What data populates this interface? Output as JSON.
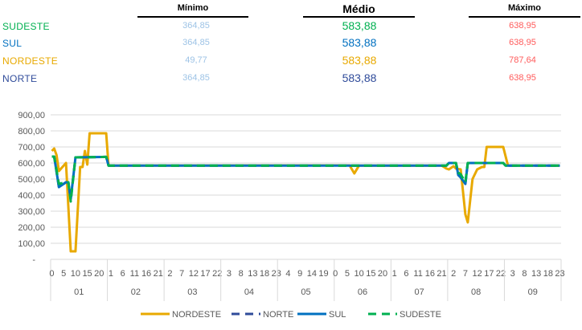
{
  "table": {
    "headers": {
      "min": "Mínimo",
      "med": "Médio",
      "max": "Máximo"
    },
    "rows": [
      {
        "region": "SUDESTE",
        "color": "#00b050",
        "min": "364,85",
        "med": "583,88",
        "max": "638,95"
      },
      {
        "region": "SUL",
        "color": "#0070c0",
        "min": "364,85",
        "med": "583,88",
        "max": "638,95"
      },
      {
        "region": "NORDESTE",
        "color": "#e8a900",
        "min": "49,77",
        "med": "583,88",
        "max": "787,64"
      },
      {
        "region": "NORTE",
        "color": "#2f4b9a",
        "min": "364,85",
        "med": "583,88",
        "max": "638,95"
      }
    ],
    "min_color": "#9dc3e6",
    "max_color": "#ff5b5b"
  },
  "chart_data": {
    "type": "line",
    "ylim": [
      0,
      900
    ],
    "y_tick_labels": [
      "-",
      "100,00",
      "200,00",
      "300,00",
      "400,00",
      "500,00",
      "600,00",
      "700,00",
      "800,00",
      "900,00"
    ],
    "grid": true,
    "legend_position": "bottom",
    "x_groups": [
      {
        "day": "01",
        "hours": [
          "0",
          "5",
          "10",
          "15",
          "20"
        ]
      },
      {
        "day": "02",
        "hours": [
          "1",
          "6",
          "11",
          "16",
          "21"
        ]
      },
      {
        "day": "03",
        "hours": [
          "2",
          "7",
          "12",
          "17",
          "22"
        ]
      },
      {
        "day": "04",
        "hours": [
          "3",
          "8",
          "13",
          "18",
          "23"
        ]
      },
      {
        "day": "05",
        "hours": [
          "4",
          "9",
          "14",
          "19"
        ]
      },
      {
        "day": "06",
        "hours": [
          "0",
          "5",
          "10",
          "15",
          "20"
        ]
      },
      {
        "day": "07",
        "hours": [
          "1",
          "6",
          "11",
          "16",
          "21"
        ]
      },
      {
        "day": "08",
        "hours": [
          "2",
          "7",
          "12",
          "17",
          "22"
        ]
      },
      {
        "day": "09",
        "hours": [
          "3",
          "8",
          "13",
          "18",
          "23"
        ]
      }
    ],
    "point_format": "[day, hour, value]",
    "series": [
      {
        "name": "NORDESTE",
        "color": "#e8a900",
        "dash": false,
        "points": [
          [
            1,
            0,
            675
          ],
          [
            1,
            1,
            690
          ],
          [
            1,
            2,
            650
          ],
          [
            1,
            3,
            550
          ],
          [
            1,
            6,
            600
          ],
          [
            1,
            8,
            50
          ],
          [
            1,
            10,
            50
          ],
          [
            1,
            12,
            575
          ],
          [
            1,
            13,
            575
          ],
          [
            1,
            14,
            675
          ],
          [
            1,
            15,
            590
          ],
          [
            1,
            16,
            785
          ],
          [
            1,
            23,
            785
          ],
          [
            2,
            0,
            583.88
          ],
          [
            6,
            6,
            585
          ],
          [
            6,
            8,
            535
          ],
          [
            6,
            10,
            583.88
          ],
          [
            7,
            21,
            583.88
          ],
          [
            7,
            23,
            565
          ],
          [
            8,
            0,
            560
          ],
          [
            8,
            2,
            580
          ],
          [
            8,
            3,
            565
          ],
          [
            8,
            5,
            560
          ],
          [
            8,
            7,
            280
          ],
          [
            8,
            8,
            230
          ],
          [
            8,
            10,
            500
          ],
          [
            8,
            12,
            560
          ],
          [
            8,
            14,
            575
          ],
          [
            8,
            15,
            575
          ],
          [
            8,
            16,
            700
          ],
          [
            8,
            23,
            700
          ],
          [
            9,
            1,
            583.88
          ],
          [
            9,
            23,
            583.88
          ]
        ]
      },
      {
        "name": "NORTE",
        "color": "#2f4b9a",
        "dash": true,
        "points": [
          [
            1,
            0,
            640
          ],
          [
            1,
            1,
            640
          ],
          [
            1,
            3,
            450
          ],
          [
            1,
            6,
            480
          ],
          [
            1,
            7,
            480
          ],
          [
            1,
            8,
            375
          ],
          [
            1,
            10,
            635
          ],
          [
            1,
            23,
            638
          ],
          [
            2,
            0,
            583.88
          ],
          [
            7,
            23,
            583.88
          ],
          [
            8,
            0,
            600
          ],
          [
            8,
            3,
            600
          ],
          [
            8,
            4,
            525
          ],
          [
            8,
            5,
            510
          ],
          [
            8,
            7,
            470
          ],
          [
            8,
            8,
            600
          ],
          [
            8,
            23,
            600
          ],
          [
            9,
            0,
            583.88
          ],
          [
            9,
            23,
            583.88
          ]
        ]
      },
      {
        "name": "SUL",
        "color": "#0070c0",
        "dash": false,
        "points": [
          [
            1,
            0,
            640
          ],
          [
            1,
            1,
            640
          ],
          [
            1,
            3,
            450
          ],
          [
            1,
            6,
            480
          ],
          [
            1,
            7,
            480
          ],
          [
            1,
            8,
            375
          ],
          [
            1,
            10,
            635
          ],
          [
            1,
            23,
            638
          ],
          [
            2,
            0,
            583.88
          ],
          [
            7,
            23,
            583.88
          ],
          [
            8,
            0,
            600
          ],
          [
            8,
            3,
            600
          ],
          [
            8,
            4,
            525
          ],
          [
            8,
            5,
            510
          ],
          [
            8,
            7,
            470
          ],
          [
            8,
            8,
            600
          ],
          [
            8,
            23,
            600
          ],
          [
            9,
            0,
            583.88
          ],
          [
            9,
            23,
            583.88
          ]
        ]
      },
      {
        "name": "SUDESTE",
        "color": "#00b050",
        "dash": true,
        "points": [
          [
            1,
            0,
            640
          ],
          [
            1,
            1,
            640
          ],
          [
            1,
            3,
            470
          ],
          [
            1,
            6,
            480
          ],
          [
            1,
            7,
            480
          ],
          [
            1,
            8,
            360
          ],
          [
            1,
            10,
            635
          ],
          [
            1,
            23,
            638
          ],
          [
            2,
            0,
            583.88
          ],
          [
            7,
            23,
            583.88
          ],
          [
            8,
            0,
            600
          ],
          [
            8,
            3,
            600
          ],
          [
            8,
            4,
            540
          ],
          [
            8,
            5,
            530
          ],
          [
            8,
            7,
            480
          ],
          [
            8,
            8,
            600
          ],
          [
            8,
            23,
            600
          ],
          [
            9,
            0,
            583.88
          ],
          [
            9,
            23,
            583.88
          ]
        ]
      }
    ]
  }
}
